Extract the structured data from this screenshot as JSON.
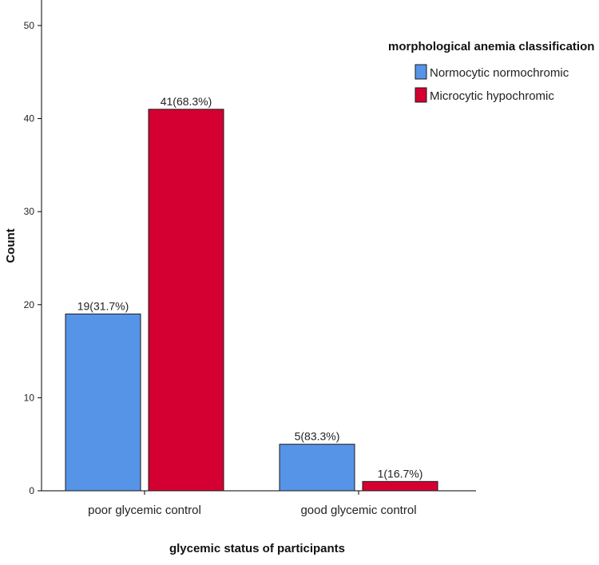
{
  "chart_data": {
    "type": "bar",
    "title": "",
    "xlabel": "glycemic status of participants",
    "ylabel": "Count",
    "categories": [
      "poor glycemic control",
      "good glycemic control"
    ],
    "ylim": [
      0,
      50
    ],
    "yticks": [
      0,
      10,
      20,
      30,
      40,
      50
    ],
    "grid": false,
    "legend": {
      "title": "morphological anemia classification",
      "placement": "top-right"
    },
    "series": [
      {
        "name": "Normocytic normochromic",
        "color": "#5694e8",
        "values": [
          19,
          5
        ],
        "labels": [
          "19(31.7%)",
          "5(83.3%)"
        ]
      },
      {
        "name": "Microcytic hypochromic",
        "color": "#d40032",
        "values": [
          41,
          1
        ],
        "labels": [
          "41(68.3%)",
          "1(16.7%)"
        ]
      }
    ]
  }
}
